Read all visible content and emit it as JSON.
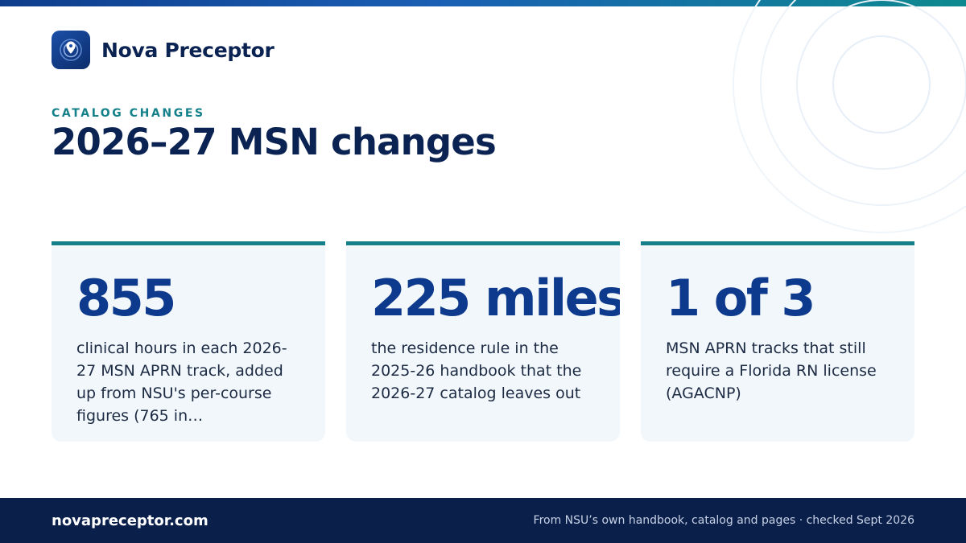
{
  "brand": {
    "name": "Nova Preceptor",
    "logo_icon": "location-pin-icon"
  },
  "header": {
    "eyebrow": "CATALOG CHANGES",
    "title": "2026–27 MSN changes"
  },
  "cards": [
    {
      "stat": "855",
      "description": "clinical hours in each 2026-27 MSN APRN track, added up from NSU's per-course figures (765 in…"
    },
    {
      "stat": "225 miles",
      "description": "the residence rule in the 2025-26 handbook that the 2026-27 catalog leaves out"
    },
    {
      "stat": "1 of 3",
      "description": "MSN APRN tracks that still require a Florida RN license (AGACNP)"
    }
  ],
  "footer": {
    "url": "novapreceptor.com",
    "note": "From NSU’s own handbook, catalog and pages · checked Sept 2026"
  },
  "colors": {
    "navy": "#0b2352",
    "accent_teal": "#13808a",
    "stat_blue": "#0d3a8c",
    "card_bg": "#f2f7fc",
    "footer_bg": "#0b1f4b"
  }
}
